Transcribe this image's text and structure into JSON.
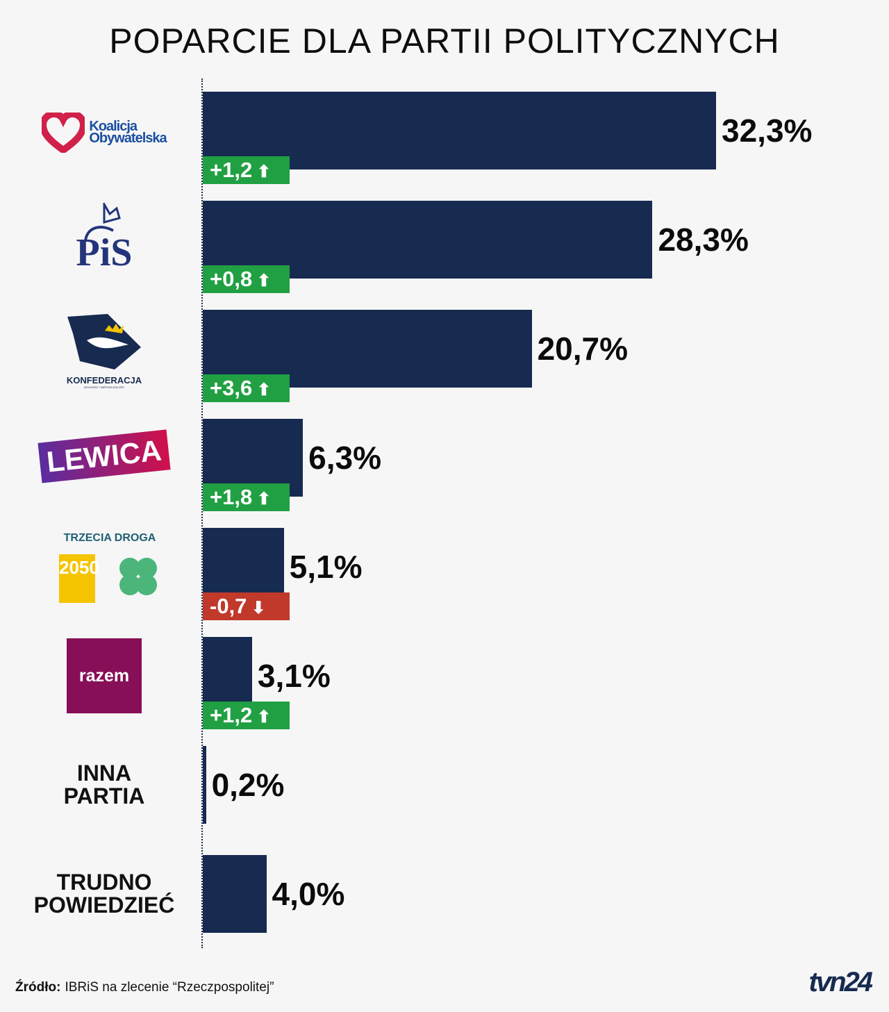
{
  "chart_data": {
    "type": "bar",
    "orientation": "horizontal",
    "title": "POPARCIE DLA PARTII POLITYCZNYCH",
    "categories": [
      "Koalicja Obywatelska",
      "PiS",
      "Konfederacja",
      "Lewica",
      "Trzecia Droga",
      "Razem",
      "INNA PARTIA",
      "TRUDNO POWIEDZIEĆ"
    ],
    "values": [
      32.3,
      28.3,
      20.7,
      6.3,
      5.1,
      3.1,
      0.2,
      4.0
    ],
    "value_labels": [
      "32,3%",
      "28,3%",
      "20,7%",
      "6,3%",
      "5,1%",
      "3,1%",
      "0,2%",
      "4,0%"
    ],
    "changes": [
      "+1,2",
      "+0,8",
      "+3,6",
      "+1,8",
      "-0,7",
      "+1,2",
      null,
      null
    ],
    "xlim": [
      0,
      35
    ],
    "grid": false,
    "bar_color": "#172a50",
    "up_color": "#21a043",
    "down_color": "#c0392b"
  },
  "logos": {
    "ko": [
      "Koalicja",
      "Obywatelska"
    ],
    "pis": "PiS",
    "konf": "KONFEDERACJA",
    "konf_sub": "WOLNOŚĆ I NIEPODLEGŁOŚĆ",
    "lewica": "LEWICA",
    "td": "TRZECIA DROGA",
    "td_2050": "2050",
    "razem": "razem",
    "inna": [
      "INNA",
      "PARTIA"
    ],
    "trudno": [
      "TRUDNO",
      "POWIEDZIEĆ"
    ]
  },
  "footer": {
    "source_label": "Źródło:",
    "source": "IBRiS na zlecenie “Rzeczpospolitej”",
    "brand": "tvn24"
  }
}
